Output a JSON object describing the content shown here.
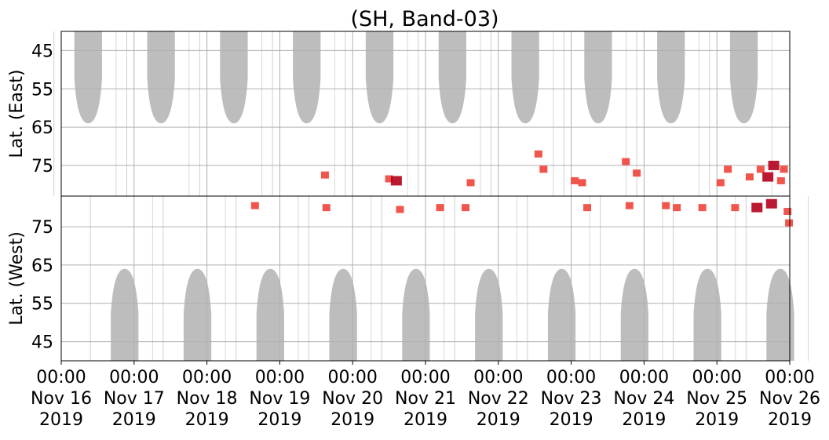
{
  "chart_data": {
    "type": "heatmap",
    "title": "(SH, Band-03)",
    "upper_ylabel": "Lat. (East)",
    "lower_ylabel": "Lat. (West)",
    "upper_yticks": [
      "45",
      "55",
      "65",
      "75"
    ],
    "lower_yticks": [
      "75",
      "65",
      "55",
      "45"
    ],
    "x_ticks": [
      {
        "time": "00:00",
        "date": "Nov 16",
        "year": "2019"
      },
      {
        "time": "00:00",
        "date": "Nov 17",
        "year": "2019"
      },
      {
        "time": "00:00",
        "date": "Nov 18",
        "year": "2019"
      },
      {
        "time": "00:00",
        "date": "Nov 19",
        "year": "2019"
      },
      {
        "time": "00:00",
        "date": "Nov 20",
        "year": "2019"
      },
      {
        "time": "00:00",
        "date": "Nov 21",
        "year": "2019"
      },
      {
        "time": "00:00",
        "date": "Nov 22",
        "year": "2019"
      },
      {
        "time": "00:00",
        "date": "Nov 23",
        "year": "2019"
      },
      {
        "time": "00:00",
        "date": "Nov 24",
        "year": "2019"
      },
      {
        "time": "00:00",
        "date": "Nov 25",
        "year": "2019"
      },
      {
        "time": "00:00",
        "date": "Nov 26",
        "year": "2019"
      }
    ],
    "xlim": [
      "2019-11-16 00:00",
      "2019-11-26 00:00"
    ],
    "upper_ylim": [
      40,
      83
    ],
    "lower_ylim": [
      83,
      40
    ],
    "grid": true,
    "colors": {
      "sunlit": "#bdbdbd",
      "event": "#f0443a",
      "event_strong": "#b3001b",
      "grid": "#b0b0b0",
      "divider": "#000000"
    },
    "sunlit_regions": {
      "east_centers_day": [
        0.37,
        1.37,
        2.37,
        3.37,
        4.37,
        5.37,
        6.37,
        7.37,
        8.37,
        9.37
      ],
      "east_min_lat": 64,
      "west_centers_day": [
        0.87,
        1.87,
        2.87,
        3.87,
        4.87,
        5.87,
        6.87,
        7.87,
        8.87,
        9.87
      ],
      "west_min_lat": 64
    },
    "events": [
      {
        "day": 2.66,
        "lat": 80.5,
        "side": "west",
        "strength": 1
      },
      {
        "day": 3.64,
        "lat": 80.0,
        "side": "west",
        "strength": 1
      },
      {
        "day": 3.62,
        "lat": 77.5,
        "side": "east",
        "strength": 1
      },
      {
        "day": 4.5,
        "lat": 78.5,
        "side": "east",
        "strength": 1
      },
      {
        "day": 4.6,
        "lat": 79.0,
        "side": "east",
        "strength": 2
      },
      {
        "day": 4.65,
        "lat": 79.5,
        "side": "west",
        "strength": 1
      },
      {
        "day": 5.2,
        "lat": 80.0,
        "side": "west",
        "strength": 1
      },
      {
        "day": 5.55,
        "lat": 80.0,
        "side": "west",
        "strength": 1
      },
      {
        "day": 5.62,
        "lat": 79.5,
        "side": "east",
        "strength": 1
      },
      {
        "day": 6.55,
        "lat": 72.0,
        "side": "east",
        "strength": 1
      },
      {
        "day": 6.62,
        "lat": 76.0,
        "side": "east",
        "strength": 1
      },
      {
        "day": 7.05,
        "lat": 79.0,
        "side": "east",
        "strength": 1
      },
      {
        "day": 7.15,
        "lat": 79.5,
        "side": "east",
        "strength": 1
      },
      {
        "day": 7.22,
        "lat": 80.0,
        "side": "west",
        "strength": 1
      },
      {
        "day": 7.75,
        "lat": 74.0,
        "side": "east",
        "strength": 1
      },
      {
        "day": 7.9,
        "lat": 77.0,
        "side": "east",
        "strength": 1
      },
      {
        "day": 7.8,
        "lat": 80.5,
        "side": "west",
        "strength": 1
      },
      {
        "day": 8.3,
        "lat": 80.5,
        "side": "west",
        "strength": 1
      },
      {
        "day": 8.45,
        "lat": 80.0,
        "side": "west",
        "strength": 1
      },
      {
        "day": 8.8,
        "lat": 80.0,
        "side": "west",
        "strength": 1
      },
      {
        "day": 9.15,
        "lat": 76.0,
        "side": "east",
        "strength": 1
      },
      {
        "day": 9.05,
        "lat": 79.5,
        "side": "east",
        "strength": 1
      },
      {
        "day": 9.25,
        "lat": 80.0,
        "side": "west",
        "strength": 1
      },
      {
        "day": 9.45,
        "lat": 78.0,
        "side": "east",
        "strength": 1
      },
      {
        "day": 9.6,
        "lat": 76.0,
        "side": "east",
        "strength": 1
      },
      {
        "day": 9.7,
        "lat": 78.0,
        "side": "east",
        "strength": 2
      },
      {
        "day": 9.78,
        "lat": 75.0,
        "side": "east",
        "strength": 2
      },
      {
        "day": 9.55,
        "lat": 80.0,
        "side": "west",
        "strength": 2
      },
      {
        "day": 9.75,
        "lat": 81.0,
        "side": "west",
        "strength": 2
      },
      {
        "day": 9.88,
        "lat": 79.0,
        "side": "east",
        "strength": 1
      },
      {
        "day": 9.92,
        "lat": 76.0,
        "side": "east",
        "strength": 1
      },
      {
        "day": 9.97,
        "lat": 79.0,
        "side": "west",
        "strength": 1
      },
      {
        "day": 9.99,
        "lat": 76.0,
        "side": "west",
        "strength": 1
      }
    ]
  }
}
